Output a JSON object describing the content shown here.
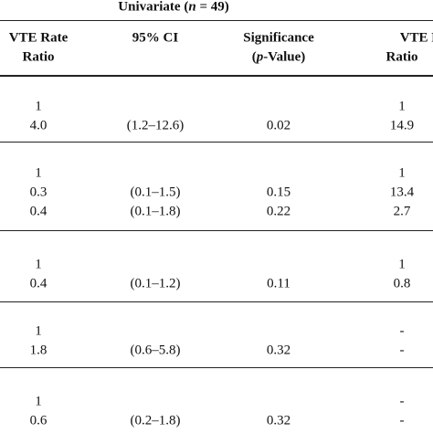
{
  "header": {
    "title": [
      "Univariate (",
      "n",
      " = 49)"
    ],
    "columns": [
      {
        "lines": [
          "VTE Rate",
          "Ratio"
        ]
      },
      {
        "lines": [
          "95% CI"
        ]
      },
      {
        "lines": [
          "Significance"
        ],
        "sub": [
          "(",
          "p",
          "-Value)"
        ]
      },
      {
        "lines": [
          "VTE Rate",
          "Ratio"
        ]
      }
    ]
  },
  "table": {
    "groups": [
      [
        [
          "1",
          null,
          null,
          "1"
        ],
        [
          "4.0",
          "(1.2–12.6)",
          "0.02",
          "14.9"
        ]
      ],
      [
        [
          "1",
          null,
          null,
          "1"
        ],
        [
          "0.3",
          "(0.1–1.5)",
          "0.15",
          "13.4"
        ],
        [
          "0.4",
          "(0.1–1.8)",
          "0.22",
          "2.7"
        ]
      ],
      [
        [
          "1",
          null,
          null,
          "1"
        ],
        [
          "0.4",
          "(0.1–1.2)",
          "0.11",
          "0.8"
        ]
      ],
      [
        [
          "1",
          null,
          null,
          "-"
        ],
        [
          "1.8",
          "(0.6–5.8)",
          "0.32",
          "-"
        ]
      ],
      [
        [
          "1",
          null,
          null,
          "-"
        ],
        [
          "0.6",
          "(0.2–1.8)",
          "0.32",
          "-"
        ]
      ]
    ]
  }
}
